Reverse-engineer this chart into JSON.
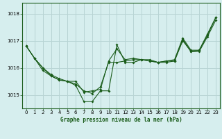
{
  "title": "Graphe pression niveau de la mer (hPa)",
  "bg_color": "#d6eeee",
  "grid_color": "#b8d4d4",
  "line_color": "#1a5c1a",
  "xlim": [
    -0.5,
    23.5
  ],
  "ylim": [
    1014.5,
    1018.4
  ],
  "yticks": [
    1015,
    1016,
    1017,
    1018
  ],
  "xticks": [
    0,
    1,
    2,
    3,
    4,
    5,
    6,
    7,
    8,
    9,
    10,
    11,
    12,
    13,
    14,
    15,
    16,
    17,
    18,
    19,
    20,
    21,
    22,
    23
  ],
  "series1_x": [
    0,
    1,
    2,
    3,
    4,
    5,
    6,
    7,
    8,
    9,
    10,
    11,
    12,
    13,
    14,
    15,
    16,
    17,
    18,
    19,
    20,
    21,
    22,
    23
  ],
  "series1_y": [
    1016.8,
    1016.35,
    1015.9,
    1015.7,
    1015.55,
    1015.5,
    1015.35,
    1014.75,
    1014.75,
    1015.15,
    1015.15,
    1016.85,
    1016.2,
    1016.2,
    1016.3,
    1016.25,
    1016.2,
    1016.2,
    1016.25,
    1017.0,
    1016.6,
    1016.6,
    1017.15,
    1017.75
  ],
  "series2_x": [
    0,
    1,
    2,
    3,
    4,
    5,
    6,
    7,
    8,
    9,
    10,
    11,
    12,
    13,
    14,
    15,
    16,
    17,
    18,
    19,
    20,
    21,
    22,
    23
  ],
  "series2_y": [
    1016.8,
    1016.35,
    1016.0,
    1015.7,
    1015.55,
    1015.5,
    1015.4,
    1015.15,
    1015.05,
    1015.3,
    1016.2,
    1016.2,
    1016.25,
    1016.3,
    1016.3,
    1016.25,
    1016.2,
    1016.25,
    1016.25,
    1017.05,
    1016.6,
    1016.65,
    1017.2,
    1017.85
  ],
  "series3_x": [
    0,
    1,
    2,
    3,
    4,
    5,
    6,
    7,
    8,
    9,
    10,
    11,
    12,
    13,
    14,
    15,
    16,
    17,
    18,
    19,
    20,
    21,
    22,
    23
  ],
  "series3_y": [
    1016.8,
    1016.35,
    1016.0,
    1015.75,
    1015.6,
    1015.5,
    1015.5,
    1015.1,
    1015.15,
    1015.2,
    1016.25,
    1016.7,
    1016.3,
    1016.35,
    1016.3,
    1016.3,
    1016.2,
    1016.25,
    1016.3,
    1017.1,
    1016.65,
    1016.65,
    1017.25,
    1017.85
  ]
}
